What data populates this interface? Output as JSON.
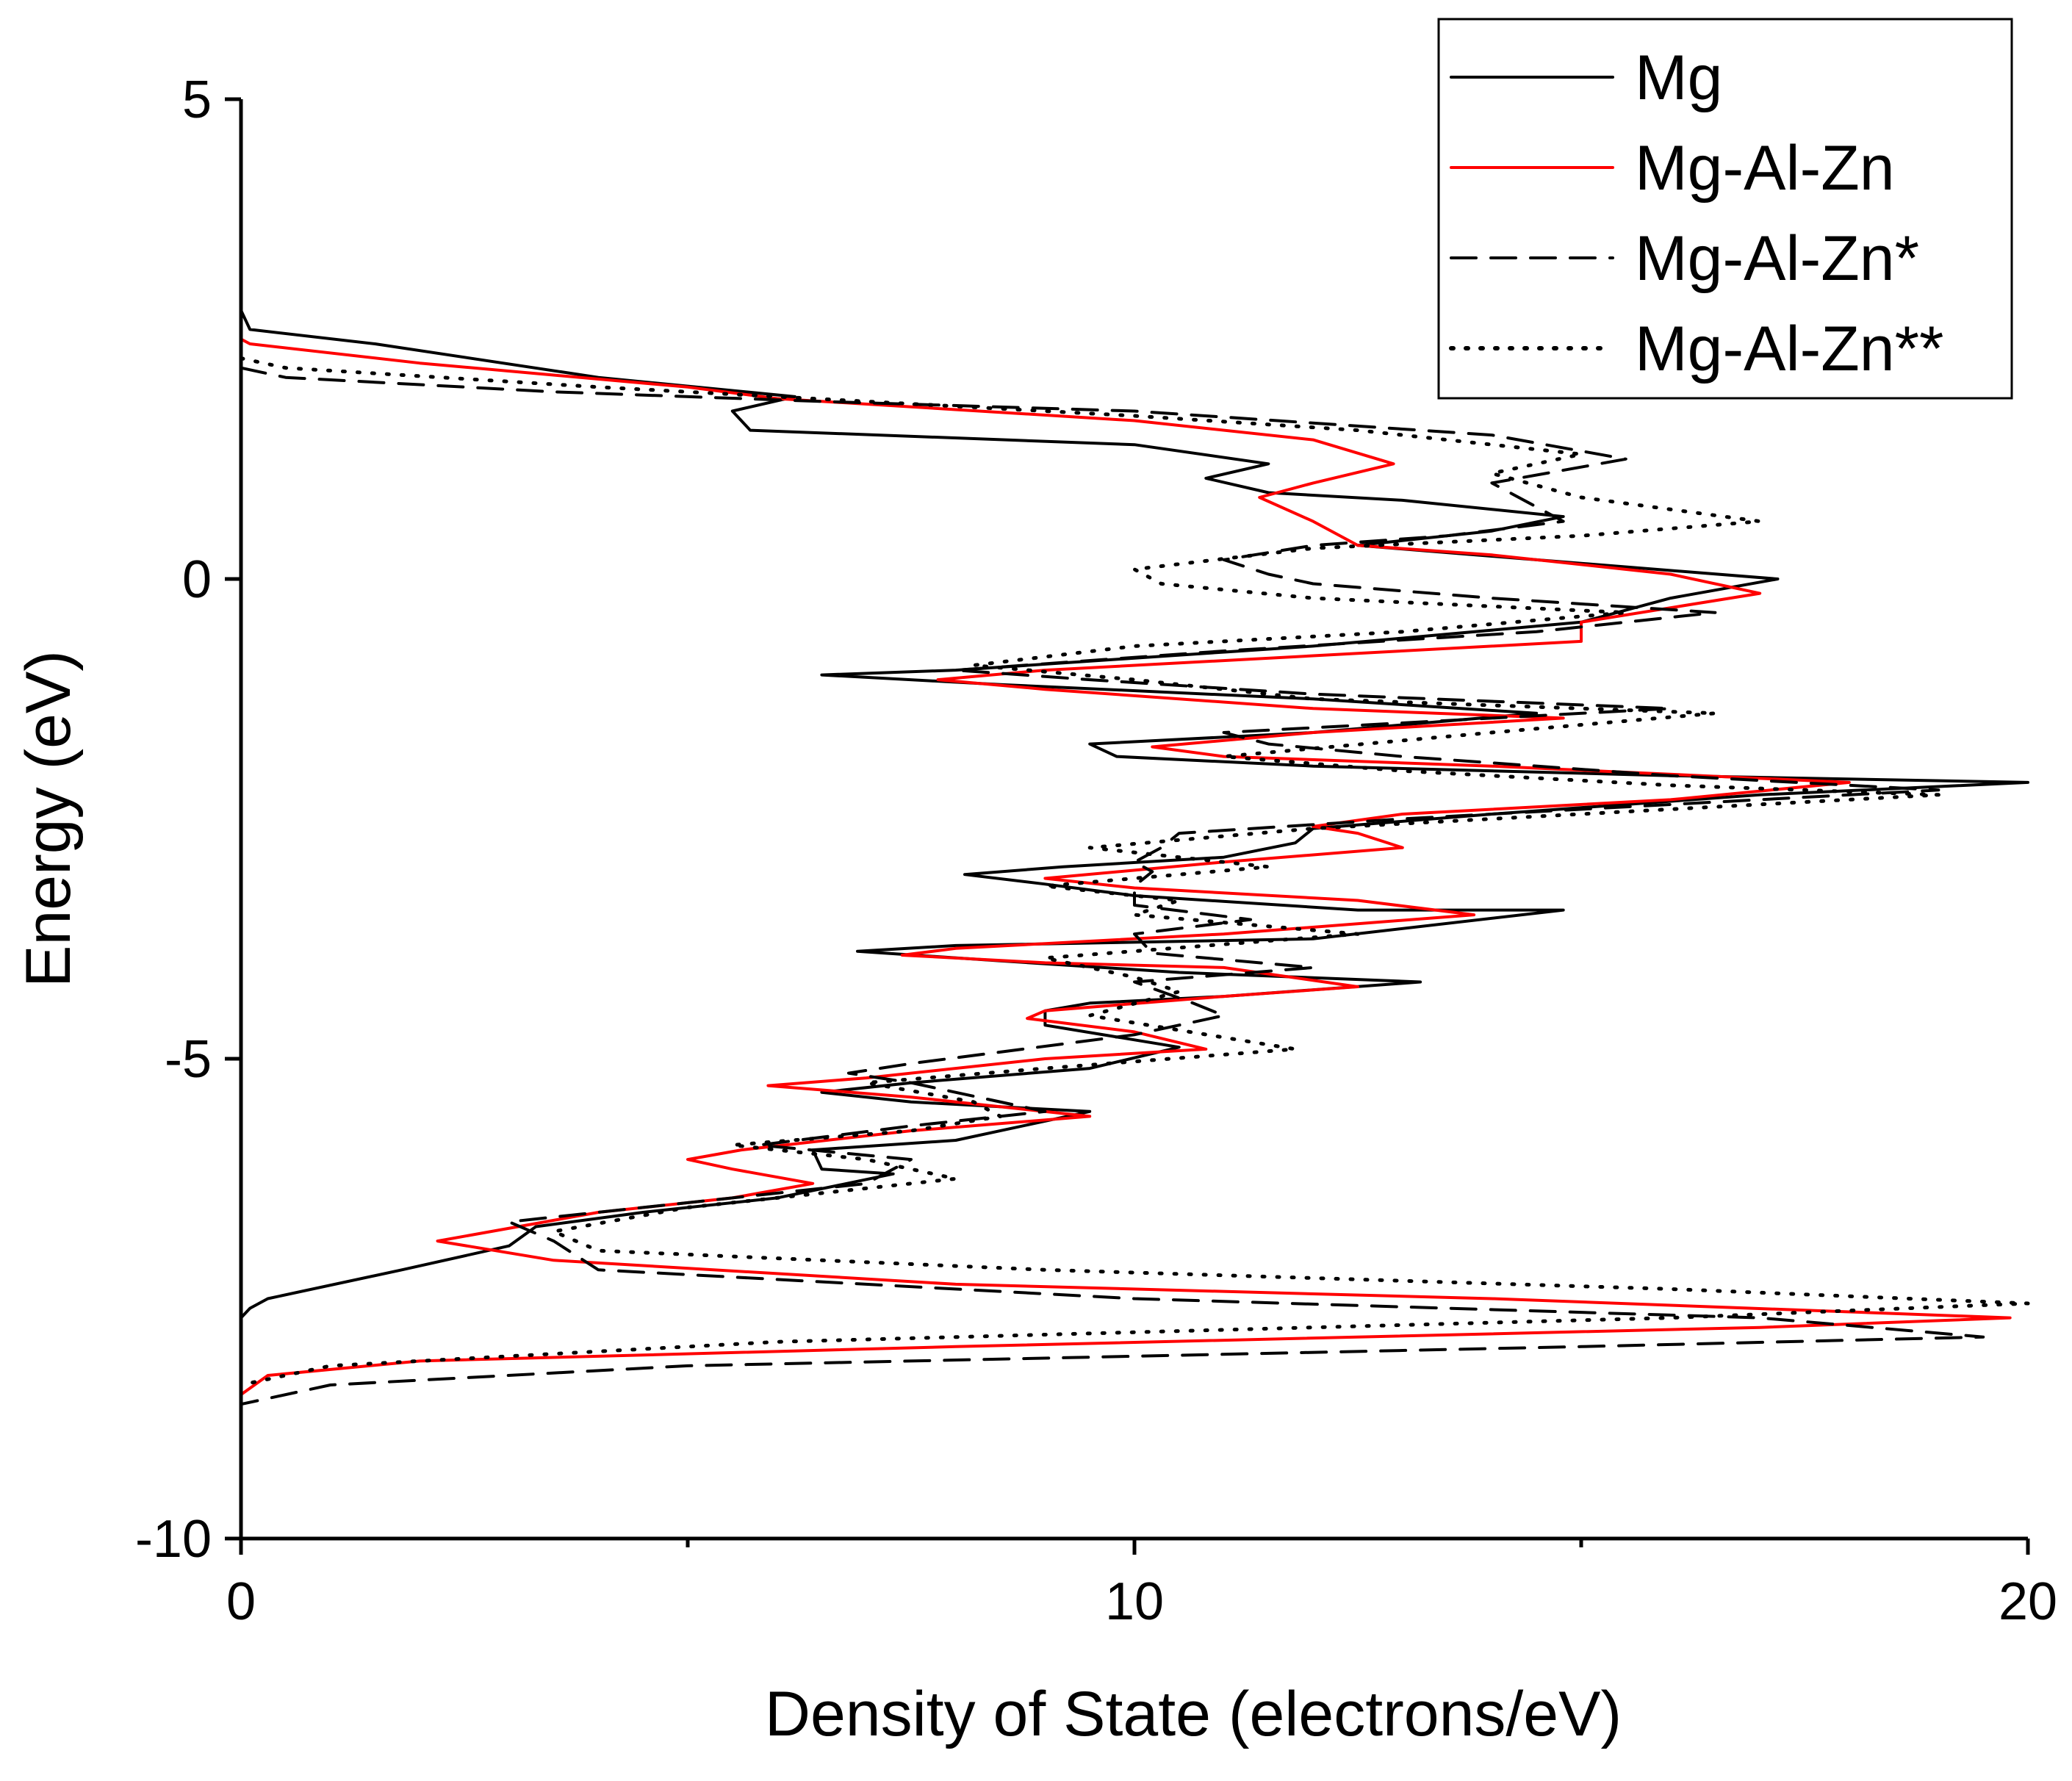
{
  "chart_data": {
    "type": "line",
    "title": "",
    "xlabel": "Density of State (electrons/eV)",
    "ylabel": "Energy (eV)",
    "xlim": [
      0,
      20
    ],
    "ylim": [
      -10,
      5
    ],
    "x_major_ticks": [
      0,
      10,
      20
    ],
    "x_minor_ticks": [
      5,
      15
    ],
    "y_major_ticks": [
      5,
      0,
      -5,
      -10
    ],
    "x_tick_labels": [
      "0",
      "10",
      "20"
    ],
    "y_tick_labels": [
      "5",
      "0",
      "-5",
      "-10"
    ],
    "legend_position": "top-right",
    "series": [
      {
        "name": "Mg",
        "color": "#000000",
        "style": "solid",
        "points": [
          [
            0.0,
            2.8
          ],
          [
            0.1,
            2.6
          ],
          [
            1.5,
            2.45
          ],
          [
            4.0,
            2.1
          ],
          [
            6.2,
            1.9
          ],
          [
            5.5,
            1.75
          ],
          [
            5.7,
            1.55
          ],
          [
            10.0,
            1.4
          ],
          [
            11.5,
            1.2
          ],
          [
            10.8,
            1.05
          ],
          [
            11.5,
            0.9
          ],
          [
            13.0,
            0.82
          ],
          [
            14.8,
            0.65
          ],
          [
            14.0,
            0.5
          ],
          [
            12.5,
            0.35
          ],
          [
            14.5,
            0.2
          ],
          [
            17.2,
            0.0
          ],
          [
            16.0,
            -0.2
          ],
          [
            15.0,
            -0.45
          ],
          [
            12.0,
            -0.7
          ],
          [
            8.0,
            -0.95
          ],
          [
            6.5,
            -1.0
          ],
          [
            8.5,
            -1.1
          ],
          [
            12.0,
            -1.25
          ],
          [
            14.5,
            -1.4
          ],
          [
            12.0,
            -1.6
          ],
          [
            9.5,
            -1.72
          ],
          [
            9.8,
            -1.85
          ],
          [
            12.0,
            -1.95
          ],
          [
            16.0,
            -2.05
          ],
          [
            20.0,
            -2.12
          ],
          [
            17.0,
            -2.25
          ],
          [
            14.0,
            -2.45
          ],
          [
            12.0,
            -2.6
          ],
          [
            11.8,
            -2.75
          ],
          [
            11.0,
            -2.9
          ],
          [
            9.2,
            -3.0
          ],
          [
            8.1,
            -3.08
          ],
          [
            9.0,
            -3.18
          ],
          [
            10.0,
            -3.3
          ],
          [
            12.5,
            -3.45
          ],
          [
            14.8,
            -3.45
          ],
          [
            12.0,
            -3.75
          ],
          [
            8.0,
            -3.82
          ],
          [
            6.9,
            -3.88
          ],
          [
            8.5,
            -3.98
          ],
          [
            10.5,
            -4.1
          ],
          [
            13.2,
            -4.2
          ],
          [
            11.0,
            -4.35
          ],
          [
            9.5,
            -4.42
          ],
          [
            9.0,
            -4.5
          ],
          [
            9.0,
            -4.65
          ],
          [
            10.5,
            -4.88
          ],
          [
            9.5,
            -5.1
          ],
          [
            7.5,
            -5.25
          ],
          [
            6.5,
            -5.35
          ],
          [
            7.5,
            -5.45
          ],
          [
            9.5,
            -5.55
          ],
          [
            8.0,
            -5.85
          ],
          [
            6.4,
            -5.95
          ],
          [
            6.5,
            -6.15
          ],
          [
            7.3,
            -6.2
          ],
          [
            6.0,
            -6.45
          ],
          [
            4.5,
            -6.6
          ],
          [
            3.3,
            -6.75
          ],
          [
            3.0,
            -6.95
          ],
          [
            1.8,
            -7.2
          ],
          [
            0.3,
            -7.5
          ],
          [
            0.1,
            -7.6
          ],
          [
            0.0,
            -7.7
          ],
          [
            0.0,
            -10.0
          ]
        ]
      },
      {
        "name": "Mg-Al-Zn",
        "color": "#ff0000",
        "style": "solid",
        "points": [
          [
            0.0,
            2.5
          ],
          [
            0.1,
            2.45
          ],
          [
            2.0,
            2.25
          ],
          [
            5.0,
            2.0
          ],
          [
            6.0,
            1.88
          ],
          [
            10.0,
            1.65
          ],
          [
            12.0,
            1.45
          ],
          [
            12.9,
            1.2
          ],
          [
            12.0,
            1.0
          ],
          [
            11.4,
            0.85
          ],
          [
            12.0,
            0.6
          ],
          [
            12.5,
            0.35
          ],
          [
            14.0,
            0.25
          ],
          [
            16.0,
            0.05
          ],
          [
            17.0,
            -0.15
          ],
          [
            16.0,
            -0.3
          ],
          [
            15.0,
            -0.45
          ],
          [
            15.0,
            -0.65
          ],
          [
            12.0,
            -0.8
          ],
          [
            9.0,
            -0.95
          ],
          [
            7.8,
            -1.05
          ],
          [
            9.0,
            -1.15
          ],
          [
            12.0,
            -1.35
          ],
          [
            14.8,
            -1.45
          ],
          [
            12.0,
            -1.6
          ],
          [
            10.2,
            -1.75
          ],
          [
            11.0,
            -1.85
          ],
          [
            14.0,
            -1.95
          ],
          [
            18.0,
            -2.12
          ],
          [
            16.0,
            -2.3
          ],
          [
            13.0,
            -2.45
          ],
          [
            12.0,
            -2.58
          ],
          [
            12.5,
            -2.65
          ],
          [
            13.0,
            -2.8
          ],
          [
            11.0,
            -2.95
          ],
          [
            9.0,
            -3.12
          ],
          [
            10.0,
            -3.22
          ],
          [
            12.5,
            -3.35
          ],
          [
            13.8,
            -3.5
          ],
          [
            11.0,
            -3.7
          ],
          [
            8.0,
            -3.85
          ],
          [
            7.4,
            -3.92
          ],
          [
            9.0,
            -4.0
          ],
          [
            11.0,
            -4.05
          ],
          [
            12.5,
            -4.25
          ],
          [
            11.0,
            -4.35
          ],
          [
            9.0,
            -4.5
          ],
          [
            8.8,
            -4.58
          ],
          [
            10.0,
            -4.72
          ],
          [
            10.8,
            -4.9
          ],
          [
            9.0,
            -5.0
          ],
          [
            7.0,
            -5.2
          ],
          [
            5.9,
            -5.28
          ],
          [
            7.5,
            -5.4
          ],
          [
            9.5,
            -5.6
          ],
          [
            7.5,
            -5.75
          ],
          [
            5.6,
            -5.95
          ],
          [
            5.0,
            -6.05
          ],
          [
            5.5,
            -6.15
          ],
          [
            6.4,
            -6.3
          ],
          [
            5.5,
            -6.45
          ],
          [
            4.0,
            -6.6
          ],
          [
            2.2,
            -6.9
          ],
          [
            3.5,
            -7.1
          ],
          [
            8.0,
            -7.35
          ],
          [
            14.0,
            -7.5
          ],
          [
            19.8,
            -7.7
          ],
          [
            17.0,
            -7.8
          ],
          [
            8.0,
            -8.0
          ],
          [
            2.0,
            -8.15
          ],
          [
            0.3,
            -8.3
          ],
          [
            0.0,
            -8.5
          ],
          [
            0.0,
            -10.0
          ]
        ]
      },
      {
        "name": "Mg-Al-Zn*",
        "color": "#000000",
        "style": "dashed",
        "points": [
          [
            0.0,
            2.2
          ],
          [
            0.5,
            2.1
          ],
          [
            3.5,
            1.95
          ],
          [
            6.5,
            1.85
          ],
          [
            10.0,
            1.75
          ],
          [
            14.0,
            1.5
          ],
          [
            15.5,
            1.25
          ],
          [
            14.0,
            1.0
          ],
          [
            14.5,
            0.75
          ],
          [
            14.8,
            0.6
          ],
          [
            13.5,
            0.45
          ],
          [
            12.0,
            0.35
          ],
          [
            11.0,
            0.2
          ],
          [
            11.5,
            0.05
          ],
          [
            12.0,
            -0.05
          ],
          [
            14.0,
            -0.2
          ],
          [
            16.5,
            -0.35
          ],
          [
            14.5,
            -0.55
          ],
          [
            11.0,
            -0.75
          ],
          [
            8.0,
            -0.95
          ],
          [
            9.5,
            -1.05
          ],
          [
            12.0,
            -1.2
          ],
          [
            16.0,
            -1.35
          ],
          [
            14.0,
            -1.45
          ],
          [
            11.0,
            -1.6
          ],
          [
            11.5,
            -1.72
          ],
          [
            13.0,
            -1.85
          ],
          [
            16.0,
            -2.05
          ],
          [
            19.0,
            -2.2
          ],
          [
            16.0,
            -2.35
          ],
          [
            13.0,
            -2.5
          ],
          [
            10.5,
            -2.65
          ],
          [
            10.3,
            -2.8
          ],
          [
            10.0,
            -2.95
          ],
          [
            10.2,
            -3.05
          ],
          [
            10.0,
            -3.2
          ],
          [
            10.0,
            -3.4
          ],
          [
            11.3,
            -3.55
          ],
          [
            10.0,
            -3.7
          ],
          [
            10.2,
            -3.9
          ],
          [
            12.0,
            -4.05
          ],
          [
            10.0,
            -4.2
          ],
          [
            10.6,
            -4.4
          ],
          [
            11.0,
            -4.55
          ],
          [
            10.0,
            -4.75
          ],
          [
            7.5,
            -5.05
          ],
          [
            6.8,
            -5.15
          ],
          [
            7.5,
            -5.25
          ],
          [
            9.0,
            -5.55
          ],
          [
            7.5,
            -5.7
          ],
          [
            5.8,
            -5.9
          ],
          [
            7.5,
            -6.05
          ],
          [
            7.0,
            -6.3
          ],
          [
            4.5,
            -6.55
          ],
          [
            3.0,
            -6.7
          ],
          [
            3.5,
            -6.9
          ],
          [
            4.0,
            -7.2
          ],
          [
            10.0,
            -7.5
          ],
          [
            17.0,
            -7.7
          ],
          [
            19.5,
            -7.9
          ],
          [
            15.0,
            -8.0
          ],
          [
            5.0,
            -8.2
          ],
          [
            1.0,
            -8.4
          ],
          [
            0.0,
            -8.6
          ],
          [
            0.0,
            -10.0
          ]
        ]
      },
      {
        "name": "Mg-Al-Zn**",
        "color": "#000000",
        "style": "dotted",
        "points": [
          [
            0.0,
            2.3
          ],
          [
            0.5,
            2.2
          ],
          [
            4.0,
            2.0
          ],
          [
            7.0,
            1.85
          ],
          [
            10.0,
            1.7
          ],
          [
            12.5,
            1.55
          ],
          [
            15.0,
            1.3
          ],
          [
            14.0,
            1.1
          ],
          [
            15.0,
            0.85
          ],
          [
            17.0,
            0.6
          ],
          [
            15.0,
            0.45
          ],
          [
            12.0,
            0.32
          ],
          [
            10.0,
            0.1
          ],
          [
            10.3,
            -0.05
          ],
          [
            12.0,
            -0.2
          ],
          [
            15.5,
            -0.35
          ],
          [
            13.0,
            -0.55
          ],
          [
            10.0,
            -0.7
          ],
          [
            8.2,
            -0.9
          ],
          [
            10.0,
            -1.05
          ],
          [
            12.0,
            -1.25
          ],
          [
            16.5,
            -1.4
          ],
          [
            14.0,
            -1.6
          ],
          [
            11.0,
            -1.85
          ],
          [
            13.0,
            -2.0
          ],
          [
            16.0,
            -2.15
          ],
          [
            19.0,
            -2.25
          ],
          [
            16.0,
            -2.4
          ],
          [
            12.0,
            -2.6
          ],
          [
            9.5,
            -2.8
          ],
          [
            11.5,
            -3.0
          ],
          [
            9.0,
            -3.2
          ],
          [
            10.5,
            -3.35
          ],
          [
            10.0,
            -3.5
          ],
          [
            12.5,
            -3.7
          ],
          [
            9.0,
            -3.95
          ],
          [
            10.0,
            -4.15
          ],
          [
            10.5,
            -4.3
          ],
          [
            9.5,
            -4.55
          ],
          [
            11.8,
            -4.9
          ],
          [
            9.0,
            -5.1
          ],
          [
            7.0,
            -5.25
          ],
          [
            8.2,
            -5.45
          ],
          [
            8.5,
            -5.6
          ],
          [
            7.5,
            -5.75
          ],
          [
            5.5,
            -5.9
          ],
          [
            7.0,
            -6.05
          ],
          [
            8.0,
            -6.25
          ],
          [
            5.0,
            -6.55
          ],
          [
            3.5,
            -6.8
          ],
          [
            4.0,
            -7.0
          ],
          [
            9.0,
            -7.2
          ],
          [
            16.0,
            -7.4
          ],
          [
            20.0,
            -7.55
          ],
          [
            16.0,
            -7.7
          ],
          [
            6.0,
            -7.95
          ],
          [
            1.0,
            -8.2
          ],
          [
            0.0,
            -8.4
          ],
          [
            0.0,
            -10.0
          ]
        ]
      }
    ]
  }
}
